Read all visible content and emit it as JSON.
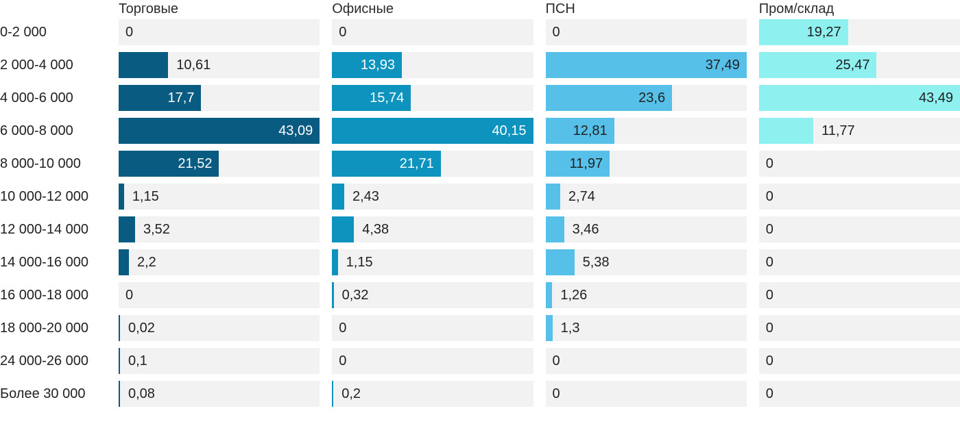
{
  "page": {
    "background": "#ffffff",
    "text_color": "#212121",
    "track_color": "#f2f2f2"
  },
  "chart_data": {
    "type": "bar",
    "orientation": "horizontal",
    "normalization": "per-column-max",
    "value_format": "comma-decimal",
    "grid": false,
    "legend_position": "column-headers-top",
    "categories": [
      "0-2 000",
      "2 000-4 000",
      "4 000-6 000",
      "6 000-8 000",
      "8 000-10 000",
      "10 000-12 000",
      "12 000-14 000",
      "14 000-16 000",
      "16 000-18 000",
      "18 000-20 000",
      "24 000-26 000",
      "Более 30 000"
    ],
    "series": [
      {
        "name": "Торговые",
        "color": "#0a5b82",
        "inside_label_color": "#ffffff",
        "values": [
          0,
          10.61,
          17.7,
          43.09,
          21.52,
          1.15,
          3.52,
          2.2,
          0,
          0.02,
          0.1,
          0.08
        ],
        "labels": [
          "0",
          "10,61",
          "17,7",
          "43,09",
          "21,52",
          "1,15",
          "3,52",
          "2,2",
          "0",
          "0,02",
          "0,1",
          "0,08"
        ]
      },
      {
        "name": "Офисные",
        "color": "#0d93bd",
        "inside_label_color": "#ffffff",
        "values": [
          0,
          13.93,
          15.74,
          40.15,
          21.71,
          2.43,
          4.38,
          1.15,
          0.32,
          0,
          0,
          0.2
        ],
        "labels": [
          "0",
          "13,93",
          "15,74",
          "40,15",
          "21,71",
          "2,43",
          "4,38",
          "1,15",
          "0,32",
          "0",
          "0",
          "0,2"
        ]
      },
      {
        "name": "ПСН",
        "color": "#57c0e8",
        "inside_label_color": "#212121",
        "values": [
          0,
          37.49,
          23.6,
          12.81,
          11.97,
          2.74,
          3.46,
          5.38,
          1.26,
          1.3,
          0,
          0
        ],
        "labels": [
          "0",
          "37,49",
          "23,6",
          "12,81",
          "11,97",
          "2,74",
          "3,46",
          "5,38",
          "1,26",
          "1,3",
          "0",
          "0"
        ]
      },
      {
        "name": "Пром/склад",
        "color": "#8ff0f0",
        "inside_label_color": "#212121",
        "values": [
          19.27,
          25.47,
          43.49,
          11.77,
          0,
          0,
          0,
          0,
          0,
          0,
          0,
          0
        ],
        "labels": [
          "19,27",
          "25,47",
          "43,49",
          "11,77",
          "0",
          "0",
          "0",
          "0",
          "0",
          "0",
          "0",
          "0"
        ]
      }
    ]
  }
}
